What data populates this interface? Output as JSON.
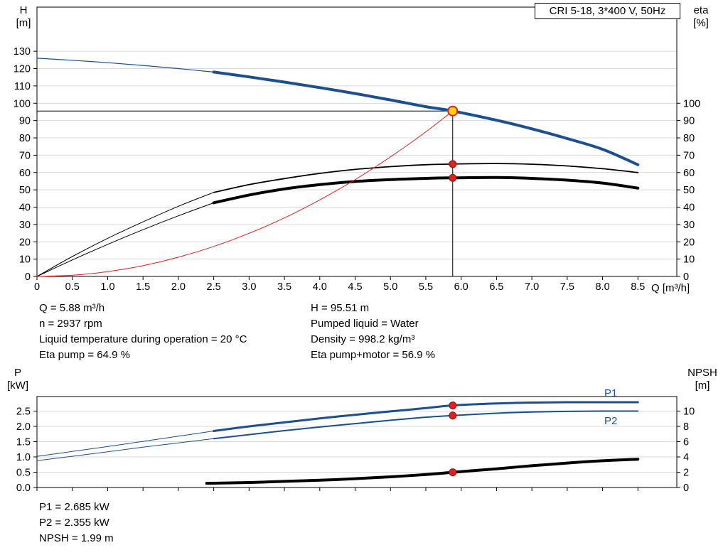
{
  "title_box": {
    "label": "CRI 5-18, 3*400 V, 50Hz"
  },
  "axes_labels": {
    "top_left_1": "H",
    "top_left_2": "[m]",
    "top_right_1": "eta",
    "top_right_2": "[%]",
    "x_unit": "Q [m³/h]",
    "bottom_left_1": "P",
    "bottom_left_2": "[kW]",
    "bottom_right_1": "NPSH",
    "bottom_right_2": "[m]"
  },
  "curve_labels": {
    "p1": "P1",
    "p2": "P2"
  },
  "info_top_left": [
    "Q = 5.88 m³/h",
    "n = 2937 rpm",
    "Liquid temperature during operation = 20 °C",
    "Eta pump = 64.9 %"
  ],
  "info_top_right": [
    "H = 95.51 m",
    "Pumped liquid = Water",
    "Density = 998.2 kg/m³",
    "Eta pump+motor = 56.9 %"
  ],
  "info_bottom": [
    "P1 = 2.685 kW",
    "P2 = 2.355 kW",
    "NPSH = 1.99 m"
  ],
  "colors": {
    "blue": "#1b4f8f",
    "red": "#e02020",
    "darkred": "#8f1010",
    "yellow": "#ffd400",
    "black": "#000000",
    "grid": "#d9d9d9"
  },
  "chart_data": [
    {
      "type": "line",
      "title": "CRI 5-18, 3*400 V, 50Hz",
      "xlabel": "Q [m³/h]",
      "ylabel_left": "H [m]",
      "ylabel_right": "eta [%]",
      "xlim": [
        0,
        9.05
      ],
      "ylim_left": [
        0,
        155.5
      ],
      "ylim_right": [
        0,
        155.5
      ],
      "legend": "none",
      "grid": "horizontal",
      "x_ticks": {
        "values": [
          0,
          0.5,
          1,
          1.5,
          2,
          2.5,
          3,
          3.5,
          4,
          4.5,
          5,
          5.5,
          6,
          6.5,
          7,
          7.5,
          8,
          8.5
        ],
        "labels": [
          "0",
          "0.5",
          "1.0",
          "1.5",
          "2.0",
          "2.5",
          "3.0",
          "3.5",
          "4.0",
          "4.5",
          "5.0",
          "5.5",
          "6.0",
          "6.5",
          "7.0",
          "7.5",
          "8.0",
          "8.5"
        ]
      },
      "left_ticks": {
        "values": [
          0,
          10,
          20,
          30,
          40,
          50,
          60,
          70,
          80,
          90,
          100,
          110,
          120,
          130
        ],
        "labels": [
          "0",
          "10",
          "20",
          "30",
          "40",
          "50",
          "60",
          "70",
          "80",
          "90",
          "100",
          "110",
          "120",
          "130"
        ]
      },
      "right_ticks": {
        "values": [
          0,
          10,
          20,
          30,
          40,
          50,
          60,
          70,
          80,
          90,
          100
        ],
        "labels": [
          "0",
          "10",
          "20",
          "30",
          "40",
          "50",
          "60",
          "70",
          "80",
          "90",
          "100"
        ]
      },
      "series": [
        {
          "name": "head-curve-thin",
          "axis": "left",
          "color": "blue",
          "width": 1.2,
          "points": [
            [
              0,
              126
            ],
            [
              0.5,
              124.8
            ],
            [
              1,
              123.4
            ],
            [
              1.5,
              121.8
            ],
            [
              2,
              120
            ],
            [
              2.5,
              118
            ]
          ]
        },
        {
          "name": "head-curve",
          "axis": "left",
          "color": "blue",
          "width": 4,
          "points": [
            [
              2.5,
              118
            ],
            [
              3,
              115.2
            ],
            [
              3.5,
              112.2
            ],
            [
              4,
              109
            ],
            [
              4.5,
              105.6
            ],
            [
              5,
              101.9
            ],
            [
              5.5,
              98
            ],
            [
              5.88,
              95.51
            ],
            [
              6.5,
              90.2
            ],
            [
              7,
              85.2
            ],
            [
              7.5,
              79.6
            ],
            [
              8,
              73.4
            ],
            [
              8.5,
              64.5
            ]
          ]
        },
        {
          "name": "eta-pump-curve-thin",
          "axis": "right",
          "color": "black",
          "width": 1,
          "points": [
            [
              0,
              0
            ],
            [
              0.5,
              11.5
            ],
            [
              1,
              22
            ],
            [
              1.5,
              31.5
            ],
            [
              2,
              40.5
            ],
            [
              2.5,
              48.5
            ]
          ]
        },
        {
          "name": "eta-pump-curve",
          "axis": "right",
          "color": "black",
          "width": 1.8,
          "points": [
            [
              2.5,
              48.5
            ],
            [
              3,
              53
            ],
            [
              3.5,
              56.5
            ],
            [
              4,
              59.5
            ],
            [
              4.5,
              61.8
            ],
            [
              5,
              63.4
            ],
            [
              5.5,
              64.5
            ],
            [
              5.88,
              64.9
            ],
            [
              6.5,
              65.2
            ],
            [
              7,
              64.8
            ],
            [
              7.5,
              63.8
            ],
            [
              8,
              62.2
            ],
            [
              8.5,
              60
            ]
          ]
        },
        {
          "name": "eta-pump-motor-curve-thin",
          "axis": "right",
          "color": "black",
          "width": 1,
          "points": [
            [
              0,
              0
            ],
            [
              0.5,
              9.5
            ],
            [
              1,
              18.5
            ],
            [
              1.5,
              27
            ],
            [
              2,
              35
            ],
            [
              2.5,
              42.5
            ]
          ]
        },
        {
          "name": "eta-pump-motor-curve",
          "axis": "right",
          "color": "black",
          "width": 4,
          "points": [
            [
              2.5,
              42.5
            ],
            [
              3,
              47
            ],
            [
              3.5,
              50.5
            ],
            [
              4,
              53
            ],
            [
              4.5,
              54.8
            ],
            [
              5,
              55.9
            ],
            [
              5.5,
              56.6
            ],
            [
              5.88,
              56.9
            ],
            [
              6.5,
              57.1
            ],
            [
              7,
              56.6
            ],
            [
              7.5,
              55.6
            ],
            [
              8,
              53.9
            ],
            [
              8.5,
              51
            ]
          ]
        },
        {
          "name": "system-curve",
          "axis": "left",
          "color": "red",
          "width": 1,
          "points": [
            [
              0,
              0
            ],
            [
              0.5,
              0.7
            ],
            [
              1,
              2.8
            ],
            [
              1.5,
              6.2
            ],
            [
              2,
              11.1
            ],
            [
              2.5,
              17.3
            ],
            [
              3,
              24.9
            ],
            [
              3.5,
              33.8
            ],
            [
              4,
              44.2
            ],
            [
              4.5,
              55.9
            ],
            [
              5,
              69
            ],
            [
              5.5,
              83.5
            ],
            [
              5.88,
              95.51
            ]
          ]
        }
      ],
      "markers": [
        {
          "name": "duty-point",
          "x": 5.88,
          "y": 95.51,
          "axis": "left",
          "r": 6.5,
          "fill": "yellow",
          "stroke": "red",
          "sw": 2
        },
        {
          "name": "eta-pump-point",
          "x": 5.88,
          "y": 64.9,
          "axis": "right",
          "r": 5,
          "fill": "red",
          "stroke": "darkred",
          "sw": 1
        },
        {
          "name": "eta-pump-motor-point",
          "x": 5.88,
          "y": 56.9,
          "axis": "right",
          "r": 5,
          "fill": "red",
          "stroke": "darkred",
          "sw": 1
        }
      ],
      "crosshair": {
        "x": 5.88,
        "y": 95.51
      },
      "operating_point": {
        "q_m3h": 5.88,
        "h_m": 95.51,
        "eta_pump_pct": 64.9,
        "eta_pump_motor_pct": 56.9
      }
    },
    {
      "type": "line",
      "title": "",
      "xlabel": "",
      "ylabel_left": "P [kW]",
      "ylabel_right": "NPSH [m]",
      "xlim": [
        0,
        9.05
      ],
      "ylim_left": [
        0,
        2.977
      ],
      "ylim_right": [
        0,
        11.91
      ],
      "legend": "P1, P2 labeled at right",
      "grid": "horizontal",
      "x_ticks": {
        "values": [
          0,
          0.5,
          1,
          1.5,
          2,
          2.5,
          3,
          3.5,
          4,
          4.5,
          5,
          5.5,
          6,
          6.5,
          7,
          7.5,
          8,
          8.5
        ],
        "labels": []
      },
      "left_ticks": {
        "values": [
          0,
          0.5,
          1,
          1.5,
          2,
          2.5
        ],
        "labels": [
          "0.0",
          "0.5",
          "1.0",
          "1.5",
          "2.0",
          "2.5"
        ]
      },
      "right_ticks": {
        "values": [
          0,
          2,
          4,
          6,
          8,
          10
        ],
        "labels": [
          "0",
          "2",
          "4",
          "6",
          "8",
          "10"
        ]
      },
      "series": [
        {
          "name": "p1-curve-thin",
          "axis": "left",
          "color": "blue",
          "width": 1,
          "points": [
            [
              0,
              1.02
            ],
            [
              0.5,
              1.18
            ],
            [
              1,
              1.34
            ],
            [
              1.5,
              1.51
            ],
            [
              2,
              1.68
            ],
            [
              2.5,
              1.85
            ]
          ]
        },
        {
          "name": "p1-curve",
          "axis": "left",
          "color": "blue",
          "width": 3,
          "points": [
            [
              2.5,
              1.85
            ],
            [
              3,
              2.0
            ],
            [
              3.5,
              2.13
            ],
            [
              4,
              2.26
            ],
            [
              4.5,
              2.38
            ],
            [
              5,
              2.49
            ],
            [
              5.5,
              2.6
            ],
            [
              5.88,
              2.685
            ],
            [
              6.5,
              2.75
            ],
            [
              7,
              2.78
            ],
            [
              7.5,
              2.79
            ],
            [
              8,
              2.79
            ],
            [
              8.5,
              2.79
            ]
          ]
        },
        {
          "name": "p2-curve-thin",
          "axis": "left",
          "color": "blue",
          "width": 1,
          "points": [
            [
              0,
              0.88
            ],
            [
              0.5,
              1.02
            ],
            [
              1,
              1.17
            ],
            [
              1.5,
              1.32
            ],
            [
              2,
              1.46
            ],
            [
              2.5,
              1.6
            ]
          ]
        },
        {
          "name": "p2-curve",
          "axis": "left",
          "color": "blue",
          "width": 2,
          "points": [
            [
              2.5,
              1.6
            ],
            [
              3,
              1.73
            ],
            [
              3.5,
              1.86
            ],
            [
              4,
              1.98
            ],
            [
              4.5,
              2.09
            ],
            [
              5,
              2.2
            ],
            [
              5.5,
              2.3
            ],
            [
              5.88,
              2.355
            ],
            [
              6.5,
              2.43
            ],
            [
              7,
              2.47
            ],
            [
              7.5,
              2.49
            ],
            [
              8,
              2.5
            ],
            [
              8.5,
              2.5
            ]
          ]
        },
        {
          "name": "npsh-curve",
          "axis": "right",
          "color": "black",
          "width": 4,
          "points": [
            [
              2.4,
              0.55
            ],
            [
              3,
              0.65
            ],
            [
              3.5,
              0.8
            ],
            [
              4,
              0.95
            ],
            [
              4.5,
              1.15
            ],
            [
              5,
              1.4
            ],
            [
              5.5,
              1.7
            ],
            [
              5.88,
              1.99
            ],
            [
              6.5,
              2.45
            ],
            [
              7,
              2.85
            ],
            [
              7.5,
              3.2
            ],
            [
              8,
              3.5
            ],
            [
              8.5,
              3.7
            ]
          ]
        }
      ],
      "markers": [
        {
          "name": "p1-point",
          "x": 5.88,
          "y": 2.685,
          "axis": "left",
          "r": 5,
          "fill": "red",
          "stroke": "darkred",
          "sw": 1
        },
        {
          "name": "p2-point",
          "x": 5.88,
          "y": 2.355,
          "axis": "left",
          "r": 5,
          "fill": "red",
          "stroke": "darkred",
          "sw": 1
        },
        {
          "name": "npsh-point",
          "x": 5.88,
          "y": 1.99,
          "axis": "right",
          "r": 5,
          "fill": "red",
          "stroke": "darkred",
          "sw": 1
        }
      ],
      "operating_point": {
        "q_m3h": 5.88,
        "p1_kw": 2.685,
        "p2_kw": 2.355,
        "npsh_m": 1.99
      }
    }
  ]
}
